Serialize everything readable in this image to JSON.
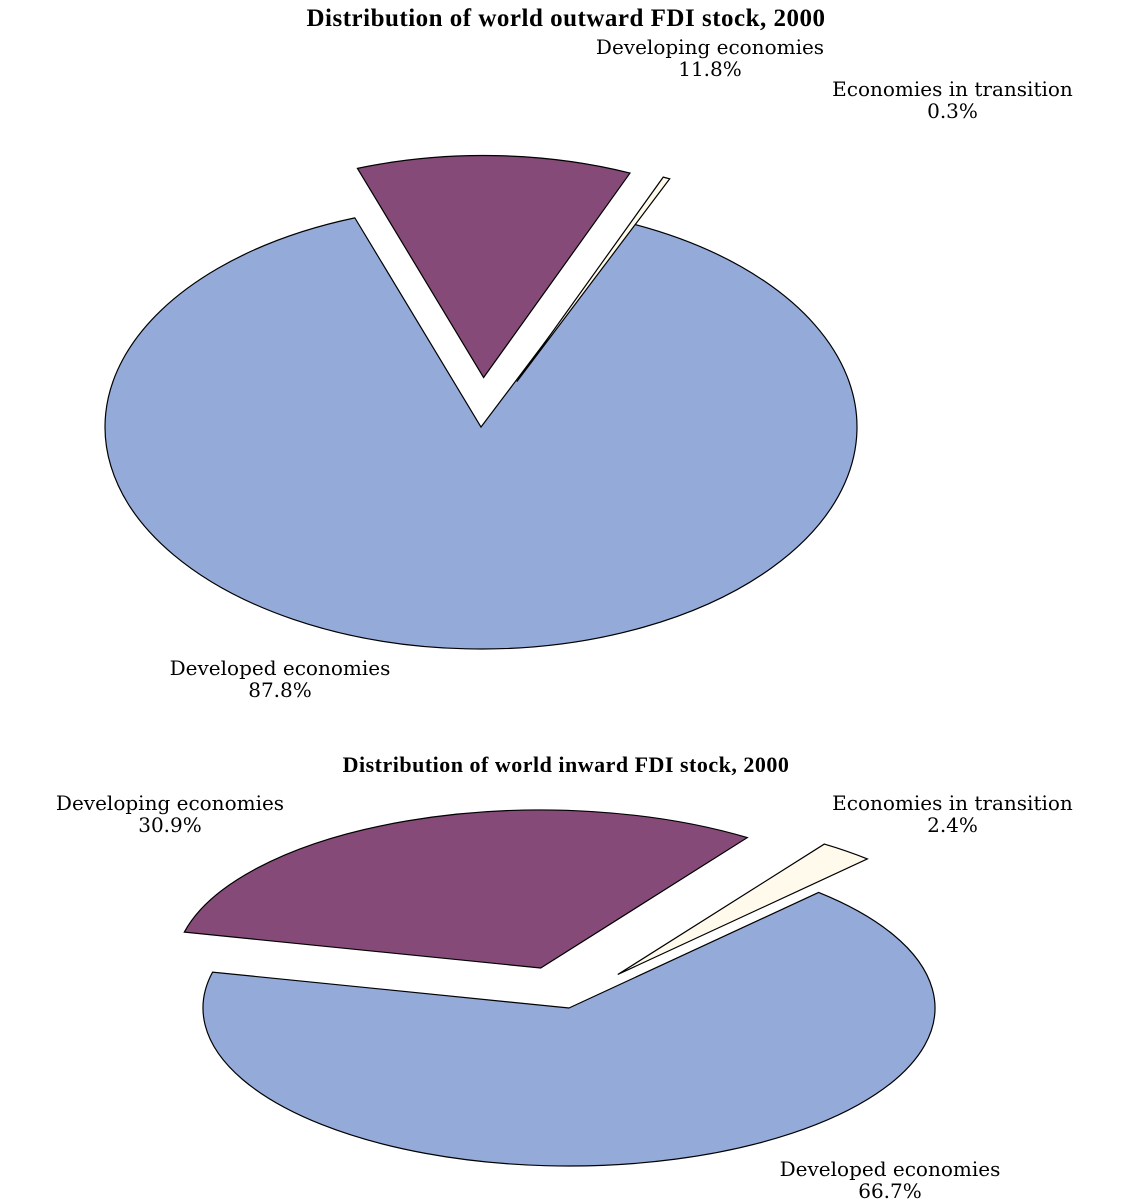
{
  "chart_data": [
    {
      "type": "pie",
      "title": "Distribution of world outward FDI stock, 2000",
      "slices": [
        {
          "label": "Developed economies",
          "value": 87.8,
          "value_label": "87.8%",
          "color": "#94aad8"
        },
        {
          "label": "Developing economies",
          "value": 11.8,
          "value_label": "11.8%",
          "color": "#854a77"
        },
        {
          "label": "Economies in transition",
          "value": 0.3,
          "value_label": "0.3%",
          "color": "#fffaeb"
        }
      ],
      "exploded_slices": [
        "Developing economies",
        "Economies in transition"
      ],
      "legend": "none"
    },
    {
      "type": "pie",
      "title": "Distribution of world inward FDI stock, 2000",
      "slices": [
        {
          "label": "Developed economies",
          "value": 66.7,
          "value_label": "66.7%",
          "color": "#94aad8"
        },
        {
          "label": "Developing economies",
          "value": 30.9,
          "value_label": "30.9%",
          "color": "#854a77"
        },
        {
          "label": "Economies in transition",
          "value": 2.4,
          "value_label": "2.4%",
          "color": "#fffaeb"
        }
      ],
      "exploded_slices": [
        "Developing economies",
        "Economies in transition"
      ],
      "legend": "none"
    }
  ]
}
